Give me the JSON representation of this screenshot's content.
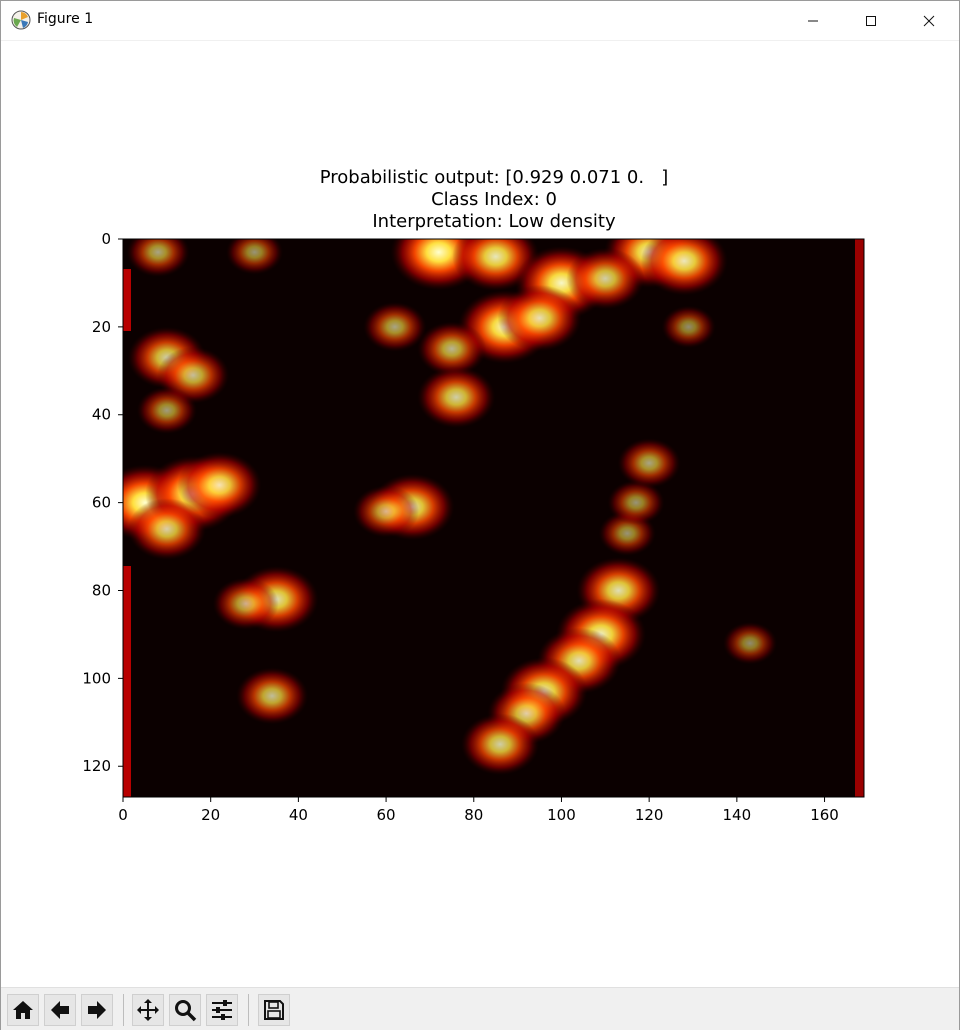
{
  "window": {
    "title": "Figure 1"
  },
  "figure": {
    "title_lines": [
      "Probabilistic output: [0.929 0.071 0.   ]",
      "Class Index: 0",
      "Interpretation: Low density"
    ]
  },
  "chart_data": {
    "type": "heatmap",
    "colormap": "hot",
    "xlim": [
      0,
      169
    ],
    "ylim": [
      127,
      0
    ],
    "xticks": [
      0,
      20,
      40,
      60,
      80,
      100,
      120,
      140,
      160
    ],
    "yticks": [
      0,
      20,
      40,
      60,
      80,
      100,
      120
    ],
    "xlabel": "",
    "ylabel": "",
    "blobs": [
      {
        "x": 5,
        "y": 60,
        "intensity": 1.0
      },
      {
        "x": 16,
        "y": 58,
        "intensity": 1.0
      },
      {
        "x": 22,
        "y": 56,
        "intensity": 0.8
      },
      {
        "x": 10,
        "y": 66,
        "intensity": 0.7
      },
      {
        "x": 72,
        "y": 3,
        "intensity": 1.0
      },
      {
        "x": 85,
        "y": 4,
        "intensity": 0.85
      },
      {
        "x": 100,
        "y": 10,
        "intensity": 0.95
      },
      {
        "x": 120,
        "y": 3,
        "intensity": 0.9
      },
      {
        "x": 128,
        "y": 5,
        "intensity": 0.85
      },
      {
        "x": 110,
        "y": 9,
        "intensity": 0.7
      },
      {
        "x": 87,
        "y": 20,
        "intensity": 0.95
      },
      {
        "x": 95,
        "y": 18,
        "intensity": 0.8
      },
      {
        "x": 75,
        "y": 25,
        "intensity": 0.55
      },
      {
        "x": 62,
        "y": 20,
        "intensity": 0.45
      },
      {
        "x": 76,
        "y": 36,
        "intensity": 0.7
      },
      {
        "x": 10,
        "y": 27,
        "intensity": 0.7
      },
      {
        "x": 16,
        "y": 31,
        "intensity": 0.6
      },
      {
        "x": 10,
        "y": 39,
        "intensity": 0.4
      },
      {
        "x": 66,
        "y": 61,
        "intensity": 0.8
      },
      {
        "x": 60,
        "y": 62,
        "intensity": 0.5
      },
      {
        "x": 35,
        "y": 82,
        "intensity": 0.8
      },
      {
        "x": 28,
        "y": 83,
        "intensity": 0.5
      },
      {
        "x": 34,
        "y": 104,
        "intensity": 0.6
      },
      {
        "x": 8,
        "y": 3,
        "intensity": 0.45
      },
      {
        "x": 30,
        "y": 3,
        "intensity": 0.35
      },
      {
        "x": 113,
        "y": 80,
        "intensity": 0.8
      },
      {
        "x": 109,
        "y": 90,
        "intensity": 0.9
      },
      {
        "x": 104,
        "y": 96,
        "intensity": 0.8
      },
      {
        "x": 96,
        "y": 103,
        "intensity": 0.85
      },
      {
        "x": 92,
        "y": 108,
        "intensity": 0.7
      },
      {
        "x": 86,
        "y": 115,
        "intensity": 0.7
      },
      {
        "x": 115,
        "y": 67,
        "intensity": 0.35
      },
      {
        "x": 117,
        "y": 60,
        "intensity": 0.35
      },
      {
        "x": 120,
        "y": 51,
        "intensity": 0.45
      },
      {
        "x": 129,
        "y": 20,
        "intensity": 0.3
      },
      {
        "x": 143,
        "y": 92,
        "intensity": 0.3
      }
    ]
  },
  "toolbar": {
    "buttons": [
      "home-icon",
      "back-arrow-icon",
      "forward-arrow-icon",
      "pan-icon",
      "zoom-icon",
      "configure-subplots-icon",
      "save-icon"
    ]
  }
}
